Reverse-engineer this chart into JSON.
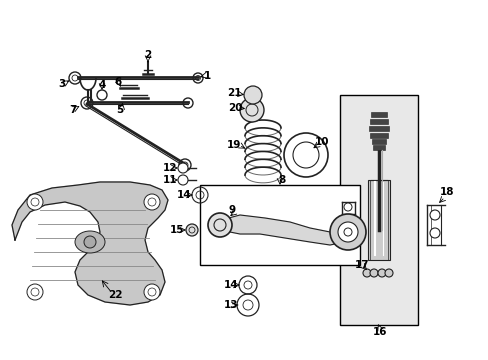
{
  "bg_color": "#ffffff",
  "fig_width": 4.89,
  "fig_height": 3.6,
  "dpi": 100,
  "gray": "#222222",
  "lgray": "#666666",
  "llgray": "#aaaaaa",
  "box_fill": "#e0e0e0"
}
